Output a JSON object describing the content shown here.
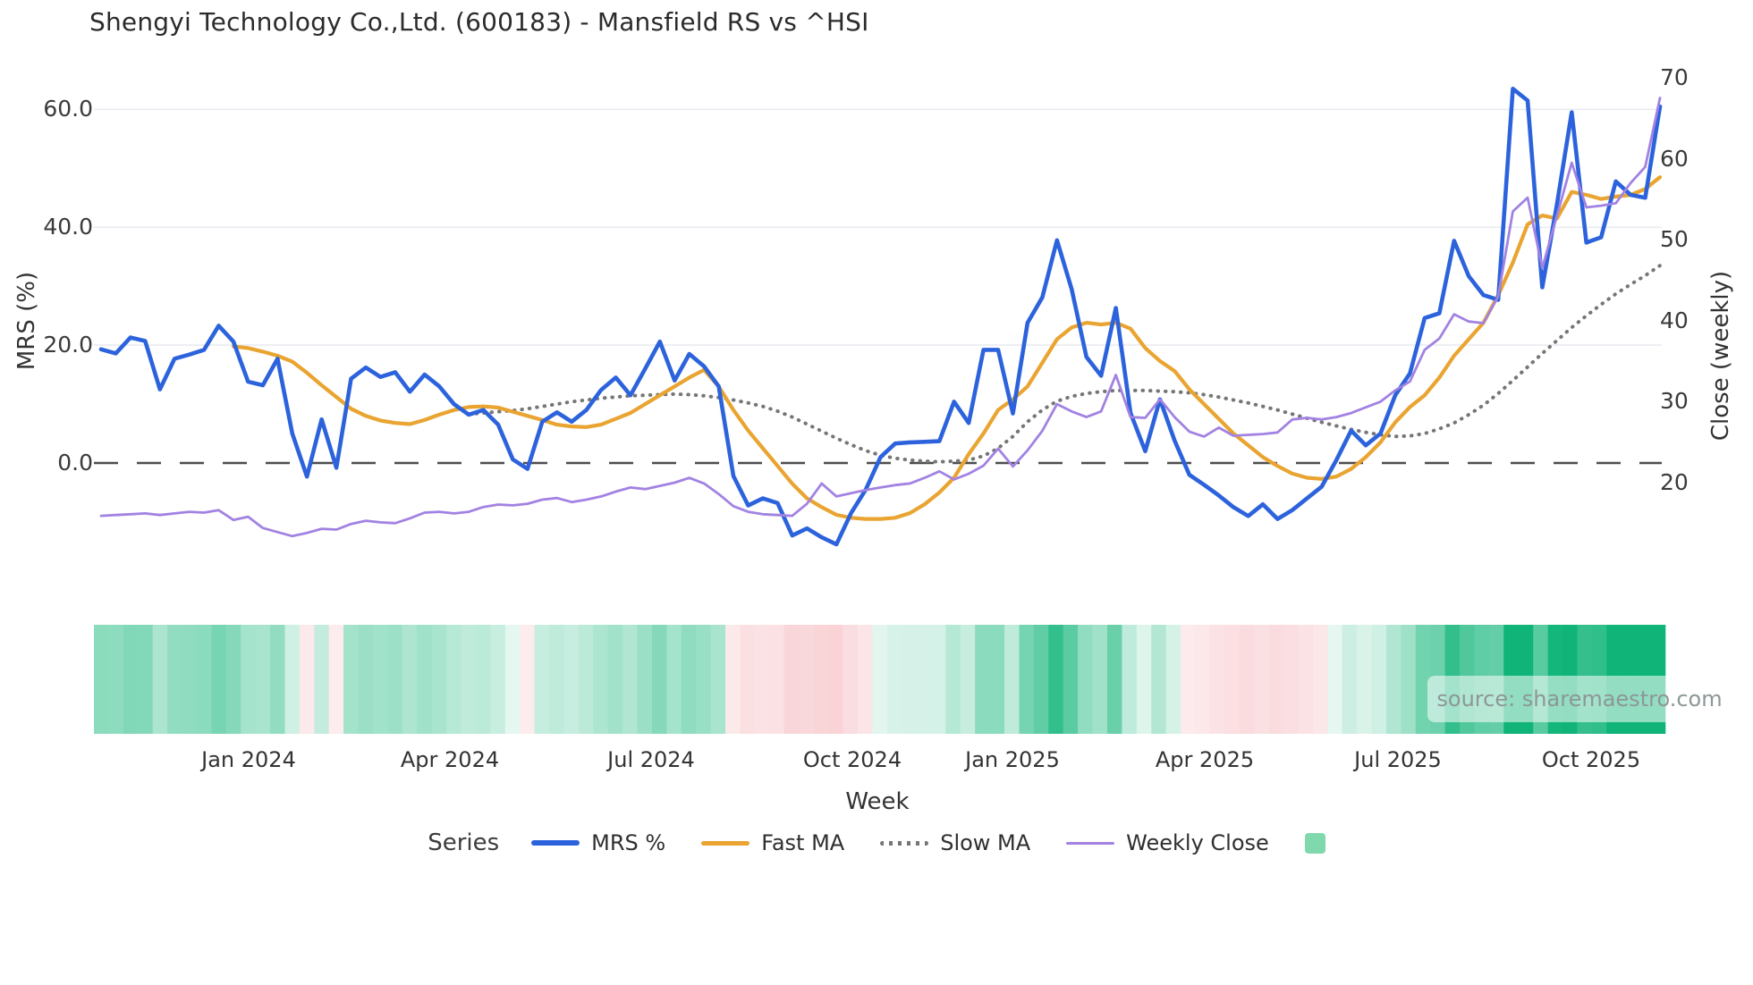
{
  "source": {
    "text": "source: sharemaestro.com"
  },
  "chart_data": {
    "type": "line",
    "title": "Shengyi Technology Co.,Ltd. (600183) - Mansfield RS vs ^HSI",
    "xlabel": "Week",
    "ylabel_left": "MRS (%)",
    "ylabel_right": "Close (weekly)",
    "grid": true,
    "zero_line": true,
    "legend_position": "bottom",
    "weeks_total": 107,
    "x_ticks": [
      {
        "label": "Jan 2024",
        "week": 10.03
      },
      {
        "label": "Apr 2024",
        "week": 23.72
      },
      {
        "label": "Jul 2024",
        "week": 37.4
      },
      {
        "label": "Oct 2024",
        "week": 51.09
      },
      {
        "label": "Jan 2025",
        "week": 61.97
      },
      {
        "label": "Apr 2025",
        "week": 75.05
      },
      {
        "label": "Jul 2025",
        "week": 88.18
      },
      {
        "label": "Oct 2025",
        "week": 101.32
      }
    ],
    "y_left_ticks": [
      {
        "label": "0.0",
        "value": 0
      },
      {
        "label": "20.0",
        "value": 20
      },
      {
        "label": "40.0",
        "value": 40
      },
      {
        "label": "60.0",
        "value": 60
      }
    ],
    "y_right_ticks": [
      {
        "label": "20",
        "value": 20
      },
      {
        "label": "30",
        "value": 30
      },
      {
        "label": "40",
        "value": 40
      },
      {
        "label": "50",
        "value": 50
      },
      {
        "label": "60",
        "value": 60
      },
      {
        "label": "70",
        "value": 70
      }
    ],
    "series": [
      {
        "name": "MRS %",
        "axis": "left",
        "color": "#2c63dc",
        "style": "solid",
        "width": 4.6,
        "values": [
          19.3,
          18.6,
          21.3,
          20.7,
          12.5,
          17.7,
          18.4,
          19.2,
          23.3,
          20.6,
          13.8,
          13.2,
          17.7,
          5.0,
          -2.3,
          7.4,
          -0.8,
          14.3,
          16.2,
          14.6,
          15.4,
          12.1,
          15.0,
          13.0,
          10.0,
          8.2,
          9.0,
          6.5,
          0.6,
          -1.0,
          7.0,
          8.6,
          7.0,
          9.0,
          12.4,
          14.5,
          11.5,
          16.0,
          20.6,
          14.0,
          18.5,
          16.4,
          13.0,
          -2.2,
          -7.2,
          -6.0,
          -6.8,
          -12.3,
          -11.1,
          -12.6,
          -13.8,
          -8.5,
          -4.5,
          1.0,
          3.3,
          3.5,
          3.6,
          3.7,
          10.4,
          6.8,
          19.2,
          19.2,
          8.4,
          23.8,
          28.1,
          37.8,
          29.5,
          18.0,
          14.8,
          26.3,
          8.5,
          2.0,
          10.8,
          3.8,
          -2.0,
          -3.7,
          -5.5,
          -7.5,
          -9.0,
          -7.0,
          -9.5,
          -8.0,
          -6.0,
          -4.0,
          0.5,
          5.5,
          3.0,
          5.0,
          11.5,
          15.2,
          24.6,
          25.4,
          37.7,
          31.7,
          28.5,
          27.7,
          63.5,
          61.5,
          29.8,
          44.0,
          59.5,
          37.4,
          38.3,
          47.8,
          45.5,
          45.0,
          60.5
        ]
      },
      {
        "name": "Fast MA",
        "axis": "left",
        "color": "#e9a431",
        "style": "solid",
        "width": 4.2,
        "values": [
          null,
          null,
          null,
          null,
          null,
          null,
          null,
          null,
          null,
          19.8,
          19.5,
          18.9,
          18.2,
          17.2,
          15.3,
          13.2,
          11.2,
          9.2,
          8.0,
          7.2,
          6.8,
          6.6,
          7.3,
          8.2,
          9.0,
          9.5,
          9.6,
          9.4,
          8.7,
          8.0,
          7.3,
          6.5,
          6.2,
          6.1,
          6.5,
          7.5,
          8.5,
          10.0,
          11.5,
          13.0,
          14.5,
          15.8,
          13.0,
          9.0,
          5.5,
          2.5,
          -0.5,
          -3.5,
          -6.0,
          -7.5,
          -8.8,
          -9.3,
          -9.5,
          -9.5,
          -9.3,
          -8.5,
          -7.0,
          -5.0,
          -2.5,
          1.5,
          5.0,
          9.0,
          10.8,
          13.0,
          17.0,
          21.0,
          23.0,
          23.8,
          23.5,
          23.8,
          22.8,
          19.5,
          17.3,
          15.6,
          12.5,
          10.0,
          7.5,
          5.0,
          3.0,
          1.0,
          -0.5,
          -1.8,
          -2.5,
          -2.7,
          -2.3,
          -1.0,
          1.0,
          3.5,
          6.9,
          9.5,
          11.5,
          14.5,
          18.2,
          21.0,
          23.8,
          28.5,
          34.0,
          40.5,
          42.0,
          41.5,
          46.0,
          45.5,
          44.8,
          45.2,
          45.5,
          46.5,
          48.5
        ]
      },
      {
        "name": "Slow MA",
        "axis": "left",
        "color": "#767676",
        "style": "dotted",
        "width": 4.0,
        "values": [
          null,
          null,
          null,
          null,
          null,
          null,
          null,
          null,
          null,
          null,
          null,
          null,
          null,
          null,
          null,
          null,
          null,
          null,
          null,
          null,
          null,
          null,
          null,
          null,
          null,
          8.3,
          8.5,
          8.7,
          8.9,
          9.2,
          9.6,
          10.0,
          10.4,
          10.7,
          11.0,
          11.2,
          11.4,
          11.5,
          11.6,
          11.7,
          11.6,
          11.4,
          11.1,
          10.7,
          10.2,
          9.6,
          8.8,
          7.8,
          6.6,
          5.4,
          4.2,
          3.1,
          2.1,
          1.3,
          0.8,
          0.5,
          0.3,
          0.2,
          0.3,
          0.5,
          1.2,
          2.5,
          4.5,
          7.0,
          9.0,
          10.5,
          11.3,
          11.8,
          12.1,
          12.3,
          12.3,
          12.3,
          12.2,
          12.1,
          11.9,
          11.6,
          11.2,
          10.7,
          10.2,
          9.6,
          9.0,
          8.3,
          7.6,
          6.9,
          6.3,
          5.7,
          5.2,
          4.8,
          4.5,
          4.6,
          5.0,
          5.8,
          6.8,
          8.2,
          9.8,
          11.8,
          14.0,
          16.3,
          18.6,
          20.8,
          23.0,
          25.0,
          26.9,
          28.7,
          30.3,
          31.8,
          33.5
        ]
      },
      {
        "name": "Weekly Close",
        "axis": "right",
        "color": "#a282e2",
        "style": "solid",
        "width": 2.8,
        "values": [
          15.9,
          16.0,
          16.1,
          16.2,
          16.0,
          16.2,
          16.4,
          16.3,
          16.6,
          15.4,
          15.8,
          14.4,
          13.9,
          13.4,
          13.8,
          14.3,
          14.2,
          14.9,
          15.3,
          15.1,
          15.0,
          15.6,
          16.3,
          16.4,
          16.2,
          16.4,
          17.0,
          17.3,
          17.2,
          17.4,
          17.9,
          18.1,
          17.6,
          17.9,
          18.3,
          18.9,
          19.4,
          19.2,
          19.6,
          20.0,
          20.6,
          19.9,
          18.6,
          17.1,
          16.4,
          16.1,
          16.0,
          15.9,
          17.4,
          19.9,
          18.3,
          18.7,
          19.1,
          19.4,
          19.7,
          19.9,
          20.6,
          21.4,
          20.4,
          21.1,
          22.1,
          24.2,
          22.0,
          24.0,
          26.4,
          29.7,
          28.8,
          28.1,
          28.8,
          33.3,
          28.1,
          28.0,
          30.3,
          28.1,
          26.3,
          25.7,
          26.8,
          25.8,
          25.9,
          26.0,
          26.2,
          27.8,
          28.0,
          27.8,
          28.1,
          28.6,
          29.3,
          30.0,
          31.4,
          32.5,
          36.4,
          37.8,
          40.8,
          39.9,
          39.7,
          43.0,
          53.5,
          55.2,
          46.5,
          53.0,
          59.5,
          54.0,
          54.2,
          54.5,
          57.0,
          59.0,
          67.5
        ]
      }
    ],
    "heatmap": {
      "derived_from": "MRS %",
      "positive_color": "#10b478",
      "negative_color": "#f0959d",
      "max_abs": 45
    },
    "legend": {
      "title": "Series",
      "entries": [
        {
          "label": "MRS %",
          "type": "line",
          "color": "#2c63dc",
          "thickness": 6
        },
        {
          "label": "Fast MA",
          "type": "line",
          "color": "#e9a431",
          "thickness": 5
        },
        {
          "label": "Slow MA",
          "type": "dotted",
          "color": "#767676",
          "thickness": 5
        },
        {
          "label": "Weekly Close",
          "type": "line",
          "color": "#a282e2",
          "thickness": 3
        },
        {
          "label": "",
          "type": "square",
          "color": "#7fd9ad"
        }
      ]
    }
  }
}
